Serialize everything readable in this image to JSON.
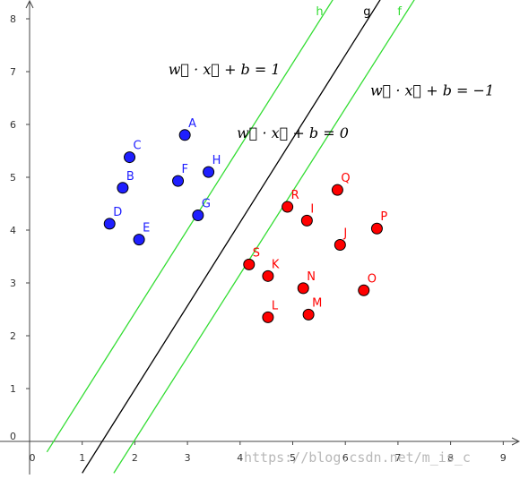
{
  "chart_data": {
    "type": "scatter",
    "title": "",
    "xlabel": "",
    "ylabel": "",
    "xlim": [
      -0.4,
      9.4
    ],
    "ylim": [
      -0.6,
      8.5
    ],
    "x_ticks": [
      0,
      1,
      2,
      3,
      4,
      5,
      6,
      7,
      8,
      9
    ],
    "y_ticks": [
      0,
      1,
      2,
      3,
      4,
      5,
      6,
      7,
      8
    ],
    "grid": false,
    "series": [
      {
        "color": "#1f1fff",
        "points": [
          {
            "label": "A",
            "x": 2.95,
            "y": 5.8
          },
          {
            "label": "B",
            "x": 1.77,
            "y": 4.8
          },
          {
            "label": "C",
            "x": 1.9,
            "y": 5.38
          },
          {
            "label": "D",
            "x": 1.52,
            "y": 4.12
          },
          {
            "label": "E",
            "x": 2.08,
            "y": 3.82
          },
          {
            "label": "F",
            "x": 2.82,
            "y": 4.93
          },
          {
            "label": "G",
            "x": 3.2,
            "y": 4.28
          },
          {
            "label": "H",
            "x": 3.4,
            "y": 5.1
          }
        ]
      },
      {
        "color": "#ff0000",
        "points": [
          {
            "label": "I",
            "x": 5.27,
            "y": 4.18
          },
          {
            "label": "J",
            "x": 5.9,
            "y": 3.72
          },
          {
            "label": "K",
            "x": 4.53,
            "y": 3.13
          },
          {
            "label": "L",
            "x": 4.53,
            "y": 2.35
          },
          {
            "label": "M",
            "x": 5.3,
            "y": 2.4
          },
          {
            "label": "N",
            "x": 5.2,
            "y": 2.9
          },
          {
            "label": "O",
            "x": 6.35,
            "y": 2.86
          },
          {
            "label": "P",
            "x": 6.6,
            "y": 4.03
          },
          {
            "label": "Q",
            "x": 5.85,
            "y": 4.76
          },
          {
            "label": "R",
            "x": 4.9,
            "y": 4.44
          },
          {
            "label": "S",
            "x": 4.17,
            "y": 3.35
          }
        ]
      }
    ],
    "lines": [
      {
        "name": "h",
        "color": "#33dd33",
        "points": [
          [
            0.33,
            -0.2
          ],
          [
            5.85,
            8.5
          ]
        ]
      },
      {
        "name": "g",
        "color": "#000000",
        "points": [
          [
            1.0,
            -0.6
          ],
          [
            6.75,
            8.5
          ]
        ]
      },
      {
        "name": "f",
        "color": "#33dd33",
        "points": [
          [
            1.6,
            -0.6
          ],
          [
            7.4,
            8.5
          ]
        ]
      }
    ],
    "annotations": [
      {
        "text": "w⃗ · x⃗ + b = 1",
        "x": 3.7,
        "y": 6.95
      },
      {
        "text": "w⃗ · x⃗ + b = 0",
        "x": 5.0,
        "y": 5.75
      },
      {
        "text": "w⃗ · x⃗ + b = −1",
        "x": 7.65,
        "y": 6.55
      }
    ]
  },
  "watermark": "https://blog.csdn.net/m_is_c"
}
